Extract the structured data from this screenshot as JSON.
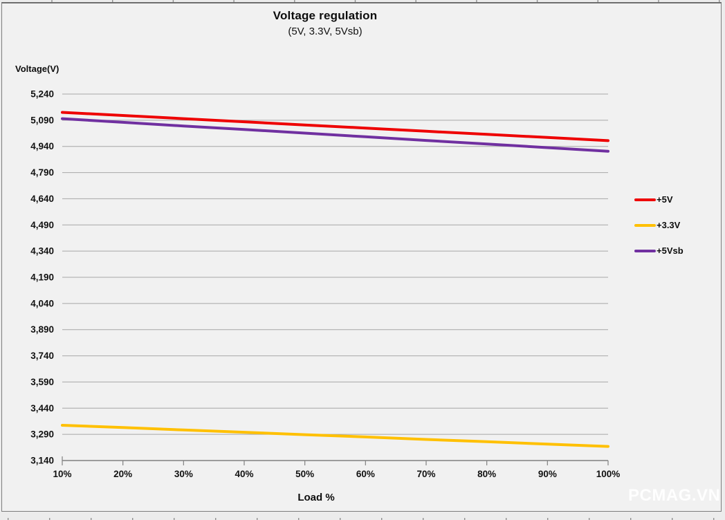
{
  "chart_data": {
    "type": "line",
    "title": "Voltage regulation",
    "subtitle": "(5V, 3.3V, 5Vsb)",
    "ylabel": "Voltage(V)",
    "xlabel": "Load %",
    "categories": [
      "10%",
      "20%",
      "30%",
      "40%",
      "50%",
      "60%",
      "70%",
      "80%",
      "90%",
      "100%"
    ],
    "ylim": [
      3140,
      5240
    ],
    "y_tick_step": 150,
    "y_tick_labels": [
      "5,240",
      "5,090",
      "4,940",
      "4,790",
      "4,640",
      "4,490",
      "4,340",
      "4,190",
      "4,040",
      "3,890",
      "3,740",
      "3,590",
      "3,440",
      "3,290",
      "3,140"
    ],
    "grid": "horizontal",
    "legend_position": "right",
    "series": [
      {
        "name": "+5V",
        "color": "#ee0000",
        "values": [
          5135,
          5117,
          5099,
          5081,
          5063,
          5045,
          5027,
          5009,
          4991,
          4973
        ]
      },
      {
        "name": "+3.3V",
        "color": "#ffc000",
        "values": [
          3342,
          3329,
          3315,
          3302,
          3288,
          3275,
          3261,
          3248,
          3234,
          3221
        ]
      },
      {
        "name": "+5Vsb",
        "color": "#7030a0",
        "values": [
          5099,
          5078,
          5057,
          5037,
          5016,
          4995,
          4974,
          4954,
          4933,
          4912
        ]
      }
    ],
    "style": {
      "grid_color": "#a6a6a6",
      "axis_color": "#808080",
      "tick_label_color": "#111111",
      "plot_background": "#f1f1f1"
    }
  },
  "watermark": "PCMAG.VN"
}
